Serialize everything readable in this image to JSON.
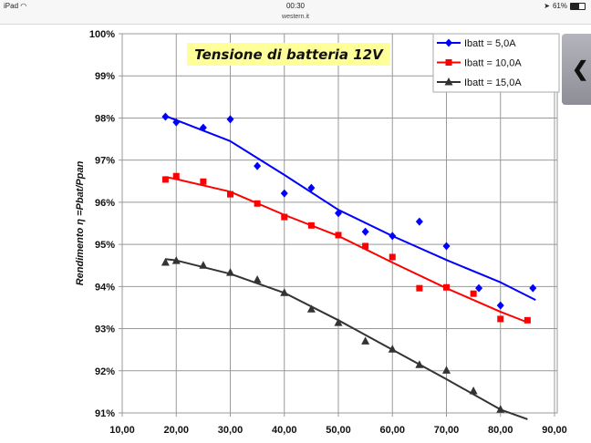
{
  "status_bar": {
    "device": "iPad",
    "wifi_icon": "wifi-icon",
    "time": "00:30",
    "battery_percent": "61%",
    "battery_level": 0.61,
    "location_icon": "location-arrow-icon"
  },
  "browser": {
    "url": "western.it"
  },
  "side_tab": {
    "icon": "chevron-left-icon",
    "glyph": "❮"
  },
  "colors": {
    "blue": "#0000ff",
    "red": "#ff0000",
    "black": "#333333",
    "title_bg": "#ffff99"
  },
  "chart_data": {
    "type": "scatter",
    "title": "Tensione di batteria 12V",
    "xlabel": "",
    "ylabel": "Rendimento η =Pbat/Ppan",
    "xlim": [
      10,
      90
    ],
    "ylim": [
      91,
      100
    ],
    "x_ticks": [
      "10,00",
      "20,00",
      "30,00",
      "40,00",
      "50,00",
      "60,00",
      "70,00",
      "80,00",
      "90,00"
    ],
    "x_tick_values": [
      10,
      20,
      30,
      40,
      50,
      60,
      70,
      80,
      90
    ],
    "y_ticks": [
      "91%",
      "92%",
      "93%",
      "94%",
      "95%",
      "96%",
      "97%",
      "98%",
      "99%",
      "100%"
    ],
    "y_tick_values": [
      91,
      92,
      93,
      94,
      95,
      96,
      97,
      98,
      99,
      100
    ],
    "grid": true,
    "legend_position": "top-right",
    "series": [
      {
        "name": "Ibatt = 5,0A",
        "color": "#0000ff",
        "marker": "diamond",
        "x": [
          18,
          20,
          25,
          30,
          35,
          40,
          45,
          50,
          55,
          60,
          65,
          70,
          76,
          80,
          86
        ],
        "y": [
          98.03,
          97.9,
          97.77,
          97.97,
          96.86,
          96.21,
          96.34,
          95.74,
          95.3,
          95.2,
          95.54,
          94.96,
          93.96,
          93.55,
          93.96
        ],
        "trend_x": [
          18,
          30,
          40,
          50,
          60,
          70,
          80,
          86.5
        ],
        "trend_y": [
          98.05,
          97.45,
          96.65,
          95.82,
          95.2,
          94.63,
          94.1,
          93.68
        ]
      },
      {
        "name": "Ibatt = 10,0A",
        "color": "#ff0000",
        "marker": "square",
        "x": [
          18,
          20,
          25,
          30,
          35,
          40,
          45,
          50,
          55,
          60,
          65,
          70,
          75,
          80,
          85
        ],
        "y": [
          96.54,
          96.62,
          96.49,
          96.19,
          95.97,
          95.65,
          95.45,
          95.22,
          94.96,
          94.7,
          93.96,
          93.98,
          93.83,
          93.23,
          93.2
        ],
        "trend_x": [
          18,
          20,
          30,
          40,
          50,
          60,
          70,
          80,
          85
        ],
        "trend_y": [
          96.6,
          96.55,
          96.25,
          95.7,
          95.2,
          94.57,
          93.96,
          93.4,
          93.15
        ]
      },
      {
        "name": "Ibatt = 15,0A",
        "color": "#333333",
        "marker": "triangle",
        "x": [
          18,
          20,
          25,
          30,
          35,
          40,
          45,
          50,
          55,
          60,
          65,
          70,
          75,
          80
        ],
        "y": [
          94.57,
          94.61,
          94.5,
          94.33,
          94.16,
          93.85,
          93.46,
          93.14,
          92.7,
          92.51,
          92.14,
          92.01,
          91.52,
          91.08
        ],
        "trend_x": [
          18,
          20,
          30,
          40,
          50,
          60,
          70,
          80,
          85
        ],
        "trend_y": [
          94.65,
          94.62,
          94.3,
          93.85,
          93.2,
          92.5,
          91.8,
          91.08,
          90.85
        ]
      }
    ]
  }
}
